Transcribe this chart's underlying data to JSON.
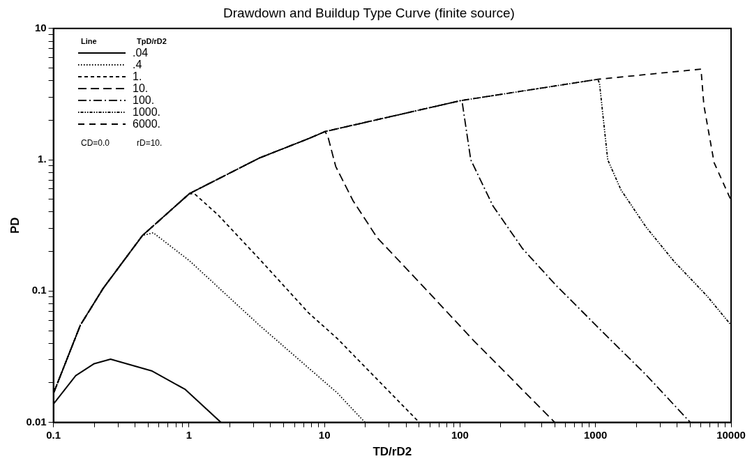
{
  "chart_data": {
    "type": "line",
    "title": "Drawdown and Buildup Type Curve (finite source)",
    "xlabel": "TD/rD2",
    "ylabel": "PD",
    "legend_title": "TpD/rD2",
    "annotations": [
      "Line",
      "CD=0.0",
      "rD=10."
    ],
    "log": "xy",
    "grid": false,
    "legend": "top left",
    "marker": "none",
    "xlim": [
      0.1,
      10000
    ],
    "ylim": [
      0.01,
      10
    ],
    "xticks": [
      {
        "value": 0.1,
        "label": "0.1"
      },
      {
        "value": 0.2,
        "label": null
      },
      {
        "value": 0.3,
        "label": null
      },
      {
        "value": 0.4,
        "label": null
      },
      {
        "value": 0.5,
        "label": null
      },
      {
        "value": 0.6,
        "label": null
      },
      {
        "value": 0.7,
        "label": null
      },
      {
        "value": 0.8,
        "label": null
      },
      {
        "value": 0.9,
        "label": null
      },
      1,
      {
        "value": 2,
        "label": null
      },
      {
        "value": 3,
        "label": null
      },
      {
        "value": 4,
        "label": null
      },
      {
        "value": 5,
        "label": null
      },
      {
        "value": 6,
        "label": null
      },
      {
        "value": 7,
        "label": null
      },
      {
        "value": 8,
        "label": null
      },
      {
        "value": 9,
        "label": null
      },
      10,
      {
        "value": 20,
        "label": null
      },
      {
        "value": 30,
        "label": null
      },
      {
        "value": 40,
        "label": null
      },
      {
        "value": 50,
        "label": null
      },
      {
        "value": 60,
        "label": null
      },
      {
        "value": 70,
        "label": null
      },
      {
        "value": 80,
        "label": null
      },
      {
        "value": 90,
        "label": null
      },
      100,
      {
        "value": 200,
        "label": null
      },
      {
        "value": 300,
        "label": null
      },
      {
        "value": 400,
        "label": null
      },
      {
        "value": 500,
        "label": null
      },
      {
        "value": 600,
        "label": null
      },
      {
        "value": 700,
        "label": null
      },
      {
        "value": 800,
        "label": null
      },
      {
        "value": 900,
        "label": null
      },
      1000,
      {
        "value": 2000,
        "label": null
      },
      {
        "value": 3000,
        "label": null
      },
      {
        "value": 4000,
        "label": null
      },
      {
        "value": 5000,
        "label": null
      },
      {
        "value": 6000,
        "label": null
      },
      {
        "value": 7000,
        "label": null
      },
      {
        "value": 8000,
        "label": null
      },
      {
        "value": 9000,
        "label": null
      },
      10000
    ],
    "yticks": [
      0.01,
      {
        "value": 0.02,
        "label": null
      },
      {
        "value": 0.03,
        "label": null
      },
      {
        "value": 0.04,
        "label": null
      },
      {
        "value": 0.05,
        "label": null
      },
      {
        "value": 0.06,
        "label": null
      },
      {
        "value": 0.07,
        "label": null
      },
      {
        "value": 0.08,
        "label": null
      },
      {
        "value": 0.09,
        "label": null
      },
      0.1,
      {
        "value": 0.2,
        "label": null
      },
      {
        "value": 0.3,
        "label": null
      },
      {
        "value": 0.4,
        "label": null
      },
      {
        "value": 0.5,
        "label": null
      },
      {
        "value": 0.6,
        "label": null
      },
      {
        "value": 0.7,
        "label": null
      },
      {
        "value": 0.8,
        "label": null
      },
      {
        "value": 0.9,
        "label": null
      },
      {
        "value": 1,
        "label": "1."
      },
      {
        "value": 2,
        "label": null
      },
      {
        "value": 3,
        "label": null
      },
      {
        "value": 4,
        "label": null
      },
      {
        "value": 5,
        "label": null
      },
      {
        "value": 6,
        "label": null
      },
      {
        "value": 7,
        "label": null
      },
      {
        "value": 8,
        "label": null
      },
      {
        "value": 9,
        "label": null
      },
      10
    ],
    "series": [
      {
        "name": ".04",
        "color": "#000000",
        "line_style": "solid",
        "x": [
          0.1,
          0.146,
          0.2,
          0.264,
          0.53,
          0.94,
          1.72
        ],
        "values": [
          0.0138,
          0.0227,
          0.028,
          0.0303,
          0.0247,
          0.0178,
          0.01
        ]
      },
      {
        "name": ".4",
        "color": "#000000",
        "line_style": "dotted",
        "x": [
          0.1,
          0.158,
          0.233,
          0.454,
          0.545,
          1.01,
          3.3,
          12.4,
          19.9
        ],
        "values": [
          0.0166,
          0.055,
          0.105,
          0.265,
          0.278,
          0.17,
          0.055,
          0.0168,
          0.01
        ]
      },
      {
        "name": "1.",
        "color": "#000000",
        "line_style": "dashed",
        "x": [
          0.1,
          0.158,
          0.233,
          0.454,
          1.01,
          1.1,
          1.64,
          3.3,
          7.65,
          12.4,
          50
        ],
        "values": [
          0.0166,
          0.055,
          0.105,
          0.265,
          0.553,
          0.55,
          0.38,
          0.176,
          0.068,
          0.0436,
          0.01
        ]
      },
      {
        "name": "10.",
        "color": "#000000",
        "line_style": "dashed",
        "x": [
          0.1,
          0.158,
          0.233,
          0.454,
          1.01,
          3.3,
          7.65,
          10.1,
          10.6,
          12.1,
          16.2,
          24.4,
          54.6,
          126,
          500
        ],
        "values": [
          0.0166,
          0.055,
          0.105,
          0.265,
          0.553,
          1.03,
          1.45,
          1.64,
          1.5,
          0.89,
          0.49,
          0.256,
          0.106,
          0.042,
          0.01
        ]
      },
      {
        "name": "100.",
        "color": "#000000",
        "line_style": "dashed",
        "x": [
          0.1,
          0.158,
          0.233,
          0.454,
          1.01,
          3.3,
          7.65,
          10.1,
          101,
          104,
          120,
          175,
          290,
          505,
          1070,
          2360,
          5000
        ],
        "values": [
          0.0166,
          0.055,
          0.105,
          0.265,
          0.553,
          1.03,
          1.45,
          1.64,
          2.82,
          2.7,
          1.0,
          0.445,
          0.21,
          0.112,
          0.0515,
          0.023,
          0.01
        ]
      },
      {
        "name": "1000.",
        "color": "#000000",
        "line_style": "dotted",
        "x": [
          0.1,
          0.158,
          0.233,
          0.454,
          1.01,
          3.3,
          7.65,
          10.1,
          101,
          1040,
          1070,
          1230,
          1540,
          2360,
          3800,
          6630,
          10000
        ],
        "values": [
          0.0166,
          0.055,
          0.105,
          0.265,
          0.553,
          1.03,
          1.45,
          1.64,
          2.82,
          4.1,
          3.8,
          1.0,
          0.59,
          0.307,
          0.168,
          0.092,
          0.055
        ]
      },
      {
        "name": "6000.",
        "color": "#000000",
        "line_style": "dashed",
        "x": [
          0.1,
          0.158,
          0.233,
          0.454,
          1.01,
          3.3,
          7.65,
          10.1,
          101,
          1040,
          6000,
          6300,
          7500,
          10000
        ],
        "values": [
          0.0166,
          0.055,
          0.105,
          0.265,
          0.553,
          1.03,
          1.45,
          1.64,
          2.82,
          4.1,
          4.9,
          2.6,
          0.95,
          0.49
        ]
      }
    ]
  }
}
